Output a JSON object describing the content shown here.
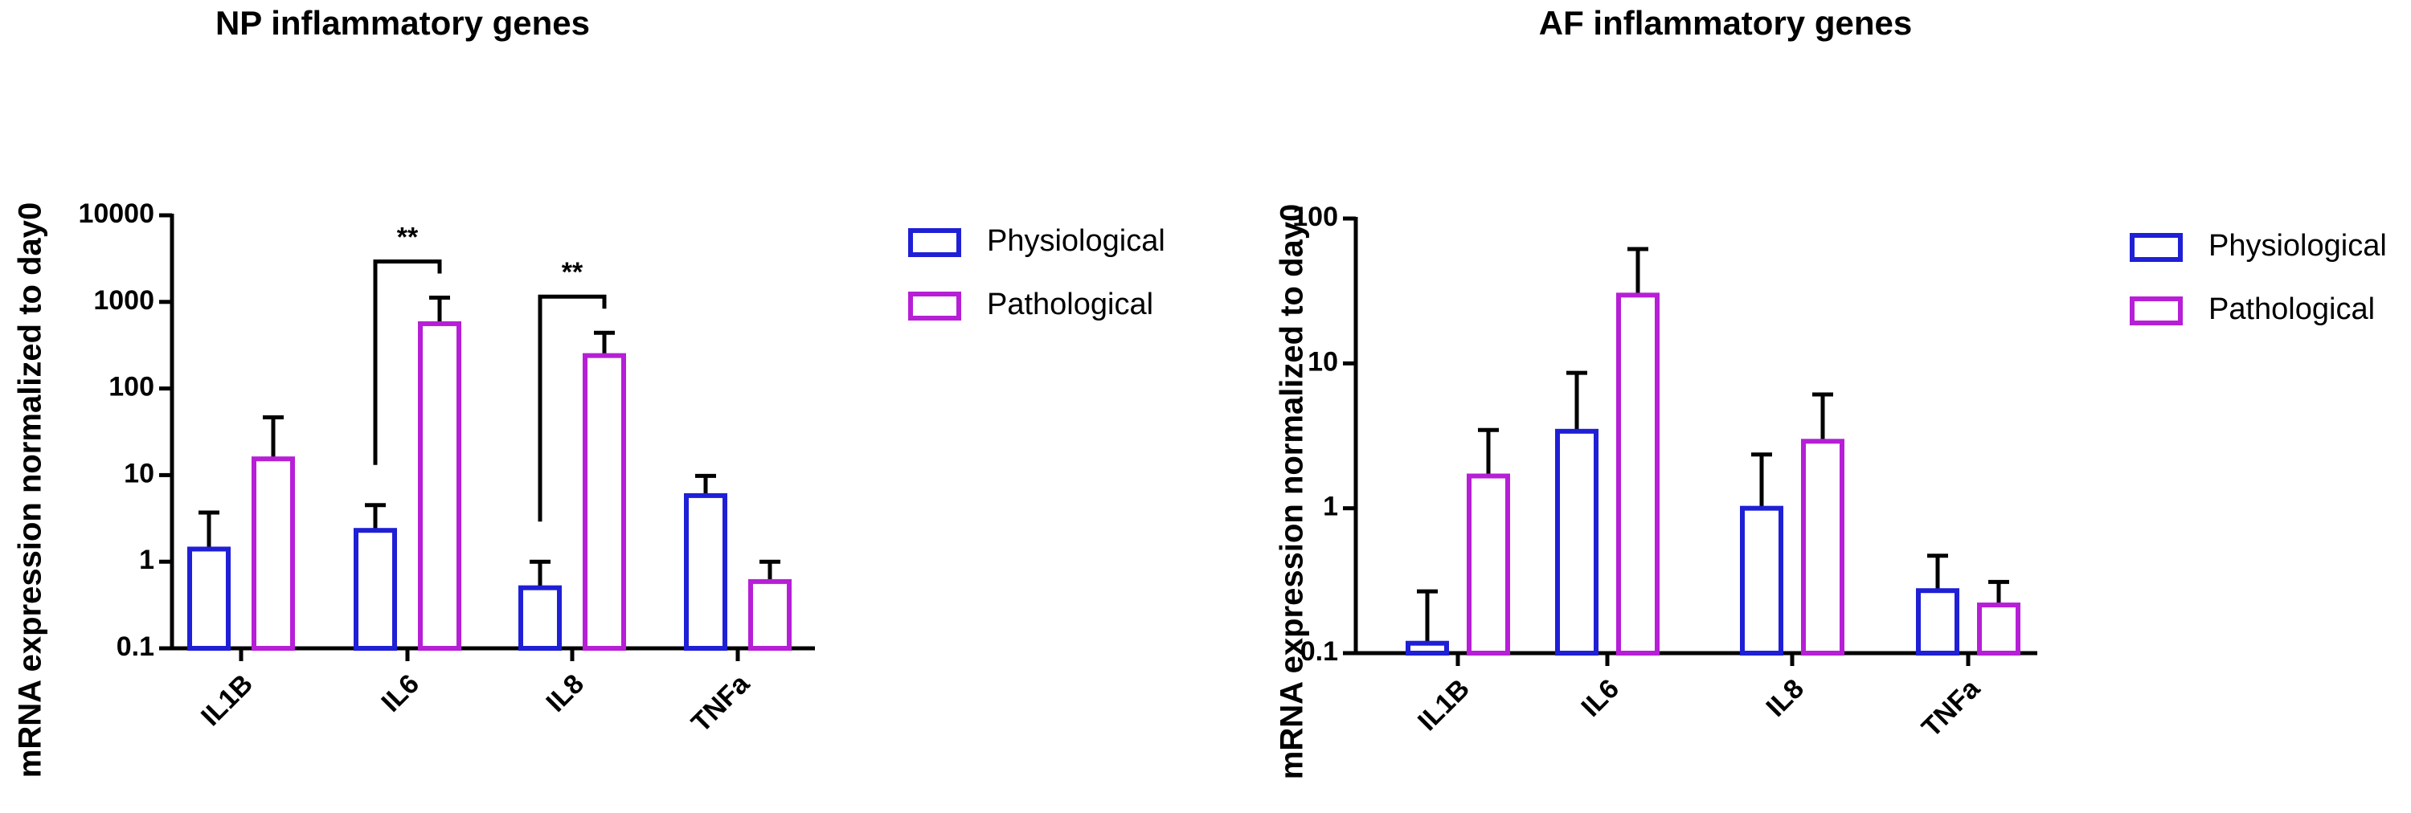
{
  "chart_data": [
    {
      "type": "bar",
      "title": "NP inflammatory genes",
      "y_label": "mRNA expression normalized to day0",
      "categories": [
        "IL1B",
        "IL6",
        "IL8",
        "TNFa"
      ],
      "log_scale": true,
      "ylim": [
        0.1,
        10000
      ],
      "yticks": [
        0.1,
        1,
        10,
        100,
        1000,
        10000
      ],
      "series": [
        {
          "name": "Physiological",
          "color": "#1f1fd6",
          "values": [
            1.4,
            2.3,
            0.5,
            5.8
          ],
          "errors": [
            2.3,
            2.2,
            0.5,
            4
          ]
        },
        {
          "name": "Pathological",
          "color": "#b61fd6",
          "values": [
            15.4,
            560,
            240,
            0.59
          ],
          "errors": [
            31,
            560,
            200,
            0.41
          ]
        }
      ],
      "significance": [
        {
          "category": "IL6",
          "label": "**"
        },
        {
          "category": "IL8",
          "label": "**"
        }
      ]
    },
    {
      "type": "bar",
      "title": "AF inflammatory genes",
      "y_label": "mRNA expression normalized to day0",
      "categories": [
        "IL1B",
        "IL6",
        "IL8",
        "TNFa"
      ],
      "log_scale": true,
      "ylim": [
        0.1,
        100
      ],
      "yticks": [
        0.1,
        1,
        10,
        100
      ],
      "series": [
        {
          "name": "Physiological",
          "color": "#1f1fd6",
          "values": [
            0.117,
            3.4,
            1.0,
            0.27
          ],
          "errors": [
            0.15,
            5.2,
            1.35,
            0.2
          ]
        },
        {
          "name": "Pathological",
          "color": "#b61fd6",
          "values": [
            1.67,
            29.6,
            2.9,
            0.215
          ],
          "errors": [
            1.8,
            32,
            3.2,
            0.095
          ]
        }
      ]
    }
  ]
}
